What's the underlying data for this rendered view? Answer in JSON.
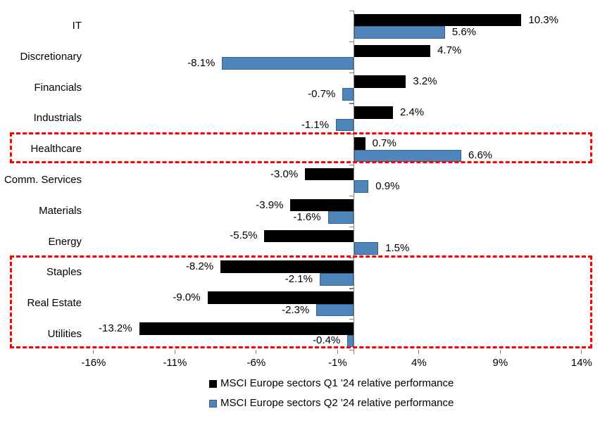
{
  "chart_data": {
    "type": "bar",
    "orientation": "horizontal",
    "title": "",
    "categories": [
      "IT",
      "Discretionary",
      "Financials",
      "Industrials",
      "Healthcare",
      "Comm. Services",
      "Materials",
      "Energy",
      "Staples",
      "Real Estate",
      "Utilities"
    ],
    "series": [
      {
        "name": "MSCI Europe sectors Q1 '24 relative performance",
        "color": "#000000",
        "values": [
          10.3,
          4.7,
          3.2,
          2.4,
          0.7,
          -3.0,
          -3.9,
          -5.5,
          -8.2,
          -9.0,
          -13.2
        ]
      },
      {
        "name": "MSCI Europe sectors Q2 '24 relative performance",
        "color": "#4E86BC",
        "values": [
          5.6,
          -8.1,
          -0.7,
          -1.1,
          6.6,
          0.9,
          -1.6,
          1.5,
          -2.1,
          -2.3,
          -0.4
        ]
      }
    ],
    "x_tick_labels": [
      "-16%",
      "-11%",
      "-6%",
      "-1%",
      "4%",
      "9%",
      "14%"
    ],
    "x_tick_values": [
      -16,
      -11,
      -6,
      -1,
      4,
      9,
      14
    ],
    "xlim": [
      -16.5,
      14.5
    ],
    "grid": false,
    "data_labels": true,
    "data_label_format": "one-decimal-percent",
    "legend_position": "bottom",
    "axis_color": "#808080",
    "highlight_color": "#FE0000",
    "highlight_boxes": [
      {
        "from_category": "Healthcare",
        "to_category": "Healthcare"
      },
      {
        "from_category": "Staples",
        "to_category": "Utilities"
      }
    ]
  }
}
